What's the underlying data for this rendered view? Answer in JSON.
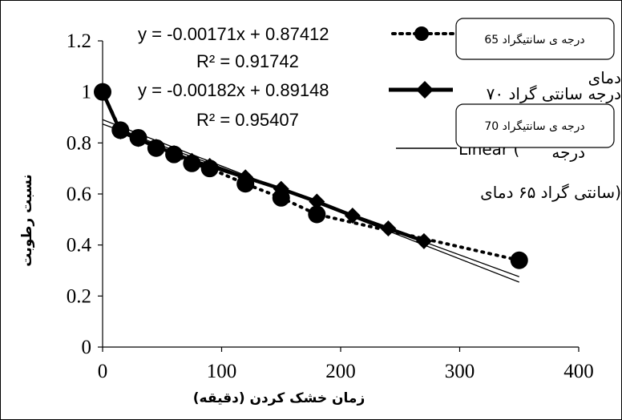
{
  "chart_data": {
    "type": "scatter",
    "xlabel": "زمان خشک کردن (دقیقه)",
    "ylabel": "نسبت رطوبت",
    "xlim": [
      0,
      400
    ],
    "ylim": [
      0,
      1.2
    ],
    "x_ticks": [
      "0",
      "100",
      "200",
      "300",
      "400"
    ],
    "y_ticks": [
      "0",
      "0.2",
      "0.4",
      "0.6",
      "0.8",
      "1",
      "1.2"
    ],
    "grid": false,
    "series": [
      {
        "name": "65 درجه ی سانتیگراد",
        "marker": "circle",
        "line": "dotted",
        "x": [
          0,
          15,
          30,
          45,
          60,
          75,
          90,
          120,
          150,
          180,
          350
        ],
        "y": [
          1.0,
          0.85,
          0.82,
          0.78,
          0.755,
          0.72,
          0.7,
          0.64,
          0.585,
          0.52,
          0.34
        ],
        "trendline": {
          "slope": -0.00171,
          "intercept": 0.87412,
          "equation": "y = -0.00171x + 0.87412",
          "r2": "R² = 0.91742",
          "x_range": [
            0,
            350
          ]
        }
      },
      {
        "name": "70 درجه ی سانتیگراد",
        "marker": "diamond",
        "line": "solid-thick",
        "x": [
          0,
          15,
          30,
          45,
          60,
          75,
          90,
          120,
          150,
          180,
          210,
          240,
          270
        ],
        "y": [
          1.0,
          0.845,
          0.815,
          0.785,
          0.76,
          0.73,
          0.71,
          0.665,
          0.62,
          0.57,
          0.515,
          0.465,
          0.415
        ],
        "trendline": {
          "slope": -0.00182,
          "intercept": 0.89148,
          "equation": "y = -0.00182x + 0.89148",
          "r2": "R² = 0.95407",
          "x_range": [
            0,
            350
          ]
        }
      }
    ],
    "legend": {
      "placement": "right",
      "fragments": [
        "دمای",
        "درجه سانتی گراد ۷۰",
        "Linear (",
        "درجه",
        "سانتی گراد ۶۵ دمای)"
      ]
    }
  },
  "colors": {
    "series": "#000000",
    "background": "#ffffff",
    "legend_box": "#ffffff"
  }
}
